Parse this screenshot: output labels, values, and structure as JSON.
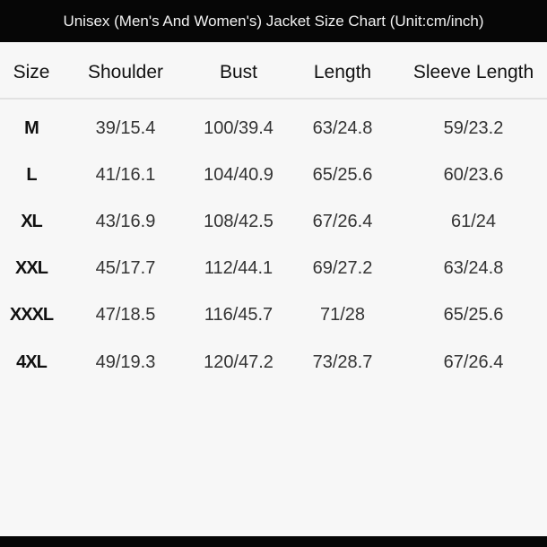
{
  "title": "Unisex (Men's And Women's) Jacket Size Chart (Unit:cm/inch)",
  "table": {
    "headers": [
      "Size",
      "Shoulder",
      "Bust",
      "Length",
      "Sleeve Length"
    ],
    "rows": [
      [
        "M",
        "39/15.4",
        "100/39.4",
        "63/24.8",
        "59/23.2"
      ],
      [
        "L",
        "41/16.1",
        "104/40.9",
        "65/25.6",
        "60/23.6"
      ],
      [
        "XL",
        "43/16.9",
        "108/42.5",
        "67/26.4",
        "61/24"
      ],
      [
        "XXL",
        "45/17.7",
        "112/44.1",
        "69/27.2",
        "63/24.8"
      ],
      [
        "XXXL",
        "47/18.5",
        "116/45.7",
        "71/28",
        "65/25.6"
      ],
      [
        "4XL",
        "49/19.3",
        "120/47.2",
        "73/28.7",
        "67/26.4"
      ]
    ]
  },
  "colors": {
    "bar": "#060606",
    "background": "#f7f7f7"
  }
}
